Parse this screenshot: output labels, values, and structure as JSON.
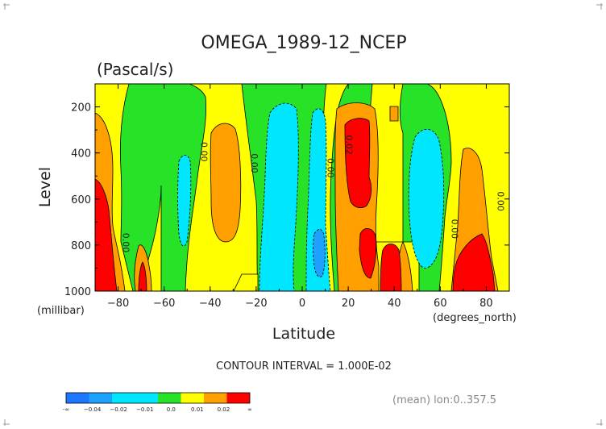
{
  "page": {
    "title": "OMEGA_1989-12_NCEP",
    "units": "(Pascal/s)",
    "contour_interval_text": "CONTOUR INTERVAL = 1.000E-02",
    "footnote": "(mean) lon:0..357.5"
  },
  "colors": {
    "blue": "#1e78ff",
    "mid_blue": "#1ea0ff",
    "cyan": "#00e6ff",
    "green": "#27e227",
    "yellow": "#ffff00",
    "orange": "#ffa000",
    "red": "#ff0000"
  },
  "chart_data": {
    "type": "heatmap",
    "title": "OMEGA_1989-12_NCEP",
    "subtitle": "(Pascal/s)",
    "xlabel": "Latitude",
    "xunit": "(degrees_north)",
    "ylabel": "Level",
    "yunit": "(millibar)",
    "xlim": [
      -90,
      90
    ],
    "ylim": [
      1000,
      100
    ],
    "xticks": [
      -80,
      -60,
      -40,
      -20,
      0,
      20,
      40,
      60,
      80
    ],
    "yticks": [
      200,
      400,
      600,
      800,
      1000
    ],
    "contour_labels": [
      {
        "text": "0.00",
        "x": -78,
        "y": 790
      },
      {
        "text": "0.00",
        "x": -44,
        "y": 395
      },
      {
        "text": "0.00",
        "x": -22,
        "y": 445
      },
      {
        "text": "0.00",
        "x": 11,
        "y": 465
      },
      {
        "text": "0.02",
        "x": 19,
        "y": 365
      },
      {
        "text": "0.00",
        "x": 65,
        "y": 730
      },
      {
        "text": "0.00",
        "x": 85,
        "y": 610
      }
    ],
    "legend": {
      "bins": [
        "blue",
        "mid_blue",
        "cyan",
        "cyan",
        "green",
        "yellow",
        "orange",
        "red"
      ],
      "labels": [
        "-∞",
        "−0.04",
        "−0.02",
        "−0.01",
        "0.0",
        "0.01",
        "0.02",
        "∞"
      ]
    }
  }
}
